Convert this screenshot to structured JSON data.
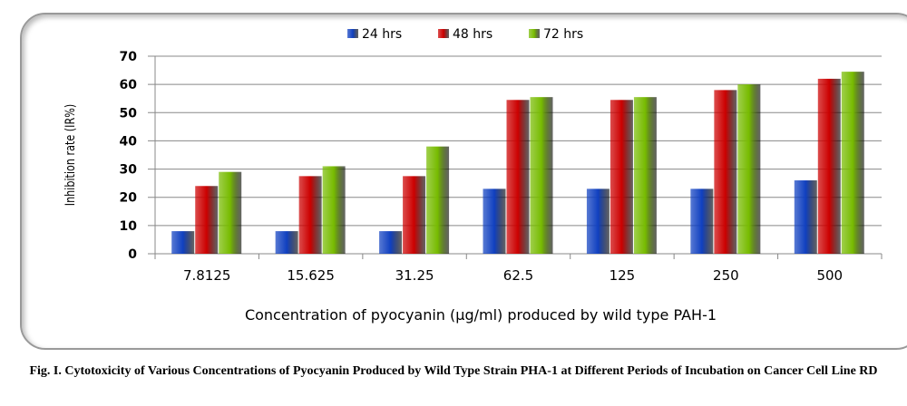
{
  "chart_data": {
    "type": "bar",
    "title": "",
    "categories": [
      "7.8125",
      "15.625",
      "31.25",
      "62.5",
      "125",
      "250",
      "500"
    ],
    "series": [
      {
        "name": "24 hrs",
        "color": "#1040c0",
        "values": [
          8,
          8,
          8,
          23,
          23,
          23,
          26
        ]
      },
      {
        "name": "48 hrs",
        "color": "#cc0000",
        "values": [
          24,
          27.5,
          27.5,
          54.5,
          54.5,
          58,
          62
        ]
      },
      {
        "name": "72 hrs",
        "color": "#77bb00",
        "values": [
          29,
          31,
          38,
          55.5,
          55.5,
          60,
          64.5
        ]
      }
    ],
    "xlabel": "Concentration of pyocyanin (µg/ml) produced by  wild type PAH-1",
    "ylabel": "Inhibition rate (IR%)",
    "ylim": [
      0,
      70
    ],
    "yticks": [
      "0",
      "10",
      "20",
      "30",
      "40",
      "50",
      "60",
      "70"
    ],
    "grid": true,
    "legend": "top-center"
  },
  "caption": "Fig. I. Cytotoxicity of Various Concentrations of Pyocyanin Produced by Wild Type Strain PHA-1 at Different Periods of Incubation on Cancer Cell Line RD"
}
